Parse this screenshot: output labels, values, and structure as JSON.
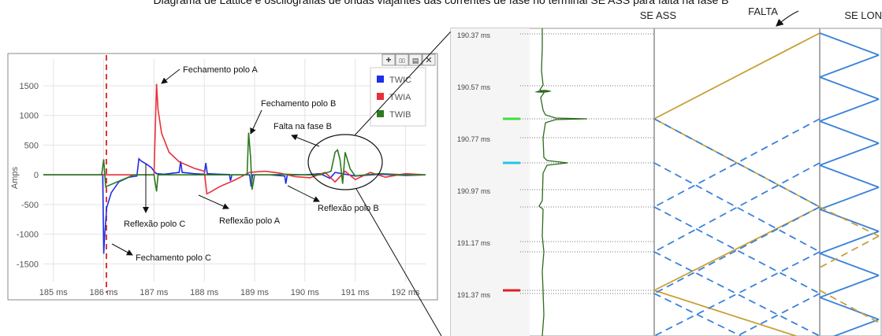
{
  "caption": "Diagrama de Lattice e oscilografias de ondas viajantes das correntes de fase no terminal SE ASS para falta na fase B",
  "left_chart": {
    "ylabel": "Amps",
    "toolbar": {
      "plus": "+",
      "stack": "▯▯",
      "split": "▤",
      "close": "✕"
    },
    "annotations": {
      "fech_a": "Fechamento polo A",
      "fech_b": "Fechamento polo B",
      "fech_c": "Fechamento polo C",
      "falta_b": "Falta na fase B",
      "refl_c": "Reflexão polo C",
      "refl_a": "Reflexão polo A",
      "refl_b": "Reflexão polo B"
    }
  },
  "right_chart": {
    "terminals": {
      "left": "SE ASS",
      "fault": "FALTA",
      "right": "SE LON"
    },
    "time_labels": [
      "190.37 ms",
      "190.57 ms",
      "190.77 ms",
      "190.97 ms",
      "191.17 ms",
      "191.37 ms"
    ]
  },
  "chart_data": [
    {
      "type": "line",
      "ylabel": "Amps",
      "xlabel": "",
      "x_ticks": [
        "185 ms",
        "186 ms",
        "187 ms",
        "188 ms",
        "189 ms",
        "190 ms",
        "191 ms",
        "192 ms"
      ],
      "y_ticks": [
        1500,
        1000,
        500,
        0,
        -500,
        -1000,
        -1500
      ],
      "xlim": [
        184.8,
        192.4
      ],
      "ylim": [
        -1800,
        1950
      ],
      "grid": true,
      "legend_position": "top-right",
      "series": [
        {
          "name": "TWIC",
          "color": "#1f2fe8",
          "x": [
            184.8,
            185.9,
            185.98,
            186.0,
            186.02,
            186.06,
            186.15,
            186.3,
            186.5,
            186.66,
            186.7,
            186.75,
            186.85,
            186.95,
            187.0,
            187.05,
            187.2,
            187.5,
            187.53,
            187.56,
            187.8,
            188.0,
            188.03,
            188.06,
            188.3,
            188.5,
            188.52,
            188.55,
            188.9,
            188.93,
            188.96,
            189.3,
            189.6,
            189.62,
            189.65,
            190.0,
            190.3,
            190.5,
            190.6,
            191.0,
            191.5,
            192.0,
            192.4
          ],
          "y": [
            0,
            0,
            5,
            -1330,
            -1000,
            -550,
            -300,
            -120,
            -40,
            -20,
            270,
            230,
            180,
            120,
            60,
            20,
            10,
            40,
            230,
            40,
            20,
            10,
            200,
            20,
            10,
            5,
            -100,
            0,
            0,
            -200,
            0,
            0,
            -20,
            -150,
            0,
            0,
            20,
            -60,
            40,
            -20,
            10,
            -10,
            0
          ]
        },
        {
          "name": "TWIA",
          "color": "#e8303a",
          "x": [
            184.8,
            186.0,
            187.0,
            187.05,
            187.08,
            187.15,
            187.3,
            187.5,
            187.8,
            188.0,
            188.05,
            188.1,
            188.3,
            188.6,
            188.9,
            189.2,
            189.5,
            189.8,
            190.1,
            190.4,
            190.6,
            190.8,
            191.0,
            191.3,
            191.6,
            192.0,
            192.4
          ],
          "y": [
            0,
            0,
            0,
            1530,
            1100,
            700,
            380,
            220,
            110,
            60,
            -320,
            -300,
            -200,
            -90,
            40,
            60,
            30,
            -30,
            -50,
            40,
            -120,
            60,
            -80,
            40,
            -40,
            20,
            0
          ]
        },
        {
          "name": "TWIB",
          "color": "#2e7a1f",
          "x": [
            184.8,
            185.96,
            186.0,
            186.04,
            186.6,
            187.0,
            187.05,
            187.08,
            188.0,
            188.85,
            188.88,
            188.92,
            188.95,
            189.0,
            189.3,
            189.6,
            190.0,
            190.3,
            190.52,
            190.6,
            190.65,
            190.7,
            190.75,
            190.8,
            190.9,
            191.0,
            191.2,
            191.5,
            192.0,
            192.4
          ],
          "y": [
            0,
            0,
            260,
            -200,
            0,
            0,
            -280,
            0,
            0,
            0,
            710,
            300,
            -250,
            0,
            0,
            10,
            0,
            0,
            60,
            380,
            420,
            250,
            -150,
            380,
            100,
            -20,
            0,
            20,
            0,
            0
          ]
        }
      ]
    },
    {
      "type": "line",
      "title": "",
      "y_ticks": [
        "190.37 ms",
        "190.57 ms",
        "190.77 ms",
        "190.97 ms",
        "191.17 ms",
        "191.37 ms"
      ],
      "series": [
        {
          "name": "",
          "color": "#2e6b1f"
        }
      ]
    }
  ]
}
